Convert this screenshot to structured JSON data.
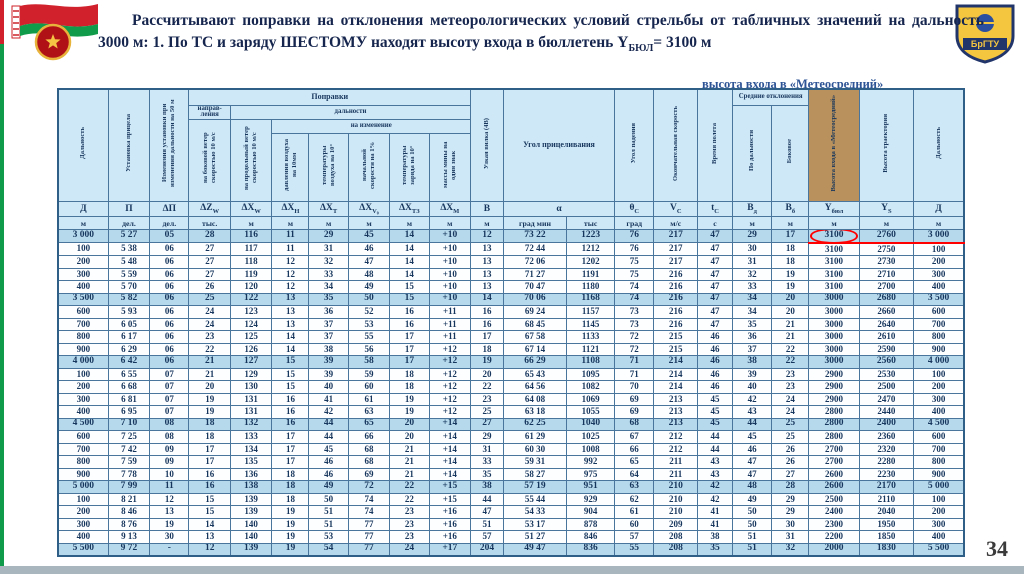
{
  "slide": {
    "title": "Рассчитывают поправки на отклонения метеорологических условий стрельбы от табличных значений на дальность 3000 м: 1. По ТС и заряду ШЕСТОМУ находят высоту входа в бюллетень",
    "formula_base": "Y",
    "formula_sub": "БЮЛ",
    "formula_rest": "= 3100 м",
    "partial_caption": "высота входа в «Метеосредний»",
    "page_number": "34",
    "crest_text": "БрГТУ"
  },
  "colors": {
    "header_blue": "#CFE8F7",
    "milestone_blue": "#B7D9EC",
    "highlight_tan": "#B8915C",
    "accent_red": "#FF0000",
    "title_navy": "#15254D",
    "table_border": "#49759C",
    "flag_red": "#D0212C",
    "flag_green": "#109B4A"
  },
  "table": {
    "group_headers": {
      "range": "Дальность",
      "sight": "Установка прицела",
      "delta": "Изменения установки при изменении дальности на 50 м",
      "corrections": "Поправки",
      "direction": "направ-ления",
      "of_range": "дальности",
      "on_change": "на изменение",
      "side_wind": "на боковой ветер скоростью 10 м/с",
      "head_wind": "на продольный ветер скоростью 10 м/с",
      "pressure": "давления воздуха на 10мм",
      "air_temp": "температуры воздуха на 10°",
      "muzzle_velocity": "начальной скорости на 1%",
      "charge_temp": "температуры заряда на 10°",
      "mine_mass": "массы мины на один знак",
      "fork": "Узкая вилка (4В)",
      "aim_angle": "Угол прицеливания",
      "fall_angle": "Угол падения",
      "final_speed": "Окончательная скорость",
      "flight_time": "Время полета",
      "mean_dev": "Средние отклонения",
      "dev_range": "По дальности",
      "dev_side": "Боковое",
      "entry_height": "Высота входа в «Метеосредний»",
      "traj_height": "Высота траектории",
      "range2": "Дальность"
    },
    "symbols": [
      "Д",
      "П",
      "ΔП",
      "ΔZ_W",
      "ΔX_W",
      "ΔX_Н",
      "ΔX_Т",
      "ΔX_V₀",
      "ΔX_ТЗ",
      "ΔX_М",
      "В",
      "α",
      "θ_С",
      "V_С",
      "t_С",
      "В_д",
      "В_б",
      "Y_бюл",
      "Y_S",
      "Д"
    ],
    "units": [
      "м",
      "дел.",
      "дел.",
      "тыс.",
      "м",
      "м",
      "м",
      "м",
      "м",
      "м",
      "м",
      "град мин",
      "тыс",
      "град",
      "м/с",
      "с",
      "м",
      "м",
      "м",
      "м",
      "м"
    ],
    "rows": [
      [
        "3 000",
        "5 27",
        "05",
        "28",
        "116",
        "11",
        "29",
        "45",
        "14",
        "+10",
        "12",
        "73 22",
        "1223",
        "76",
        "217",
        "47",
        "29",
        "17",
        "3100",
        "2760",
        "3 000"
      ],
      [
        "100",
        "5 38",
        "06",
        "27",
        "117",
        "11",
        "31",
        "46",
        "14",
        "+10",
        "13",
        "72 44",
        "1212",
        "76",
        "217",
        "47",
        "30",
        "18",
        "3100",
        "2750",
        "100"
      ],
      [
        "200",
        "5 48",
        "06",
        "27",
        "118",
        "12",
        "32",
        "47",
        "14",
        "+10",
        "13",
        "72 06",
        "1202",
        "75",
        "217",
        "47",
        "31",
        "18",
        "3100",
        "2730",
        "200"
      ],
      [
        "300",
        "5 59",
        "06",
        "27",
        "119",
        "12",
        "33",
        "48",
        "14",
        "+10",
        "13",
        "71 27",
        "1191",
        "75",
        "216",
        "47",
        "32",
        "19",
        "3100",
        "2710",
        "300"
      ],
      [
        "400",
        "5 70",
        "06",
        "26",
        "120",
        "12",
        "34",
        "49",
        "15",
        "+10",
        "13",
        "70 47",
        "1180",
        "74",
        "216",
        "47",
        "33",
        "19",
        "3100",
        "2700",
        "400"
      ],
      [
        "3 500",
        "5 82",
        "06",
        "25",
        "122",
        "13",
        "35",
        "50",
        "15",
        "+10",
        "14",
        "70 06",
        "1168",
        "74",
        "216",
        "47",
        "34",
        "20",
        "3000",
        "2680",
        "3 500"
      ],
      [
        "600",
        "5 93",
        "06",
        "24",
        "123",
        "13",
        "36",
        "52",
        "16",
        "+11",
        "16",
        "69 24",
        "1157",
        "73",
        "216",
        "47",
        "34",
        "20",
        "3000",
        "2660",
        "600"
      ],
      [
        "700",
        "6 05",
        "06",
        "24",
        "124",
        "13",
        "37",
        "53",
        "16",
        "+11",
        "16",
        "68 45",
        "1145",
        "73",
        "216",
        "47",
        "35",
        "21",
        "3000",
        "2640",
        "700"
      ],
      [
        "800",
        "6 17",
        "06",
        "23",
        "125",
        "14",
        "37",
        "55",
        "17",
        "+11",
        "17",
        "67 58",
        "1133",
        "72",
        "215",
        "46",
        "36",
        "21",
        "3000",
        "2610",
        "800"
      ],
      [
        "900",
        "6 29",
        "06",
        "22",
        "126",
        "14",
        "38",
        "56",
        "17",
        "+12",
        "18",
        "67 14",
        "1121",
        "72",
        "215",
        "46",
        "37",
        "22",
        "3000",
        "2590",
        "900"
      ],
      [
        "4 000",
        "6 42",
        "06",
        "21",
        "127",
        "15",
        "39",
        "58",
        "17",
        "+12",
        "19",
        "66 29",
        "1108",
        "71",
        "214",
        "46",
        "38",
        "22",
        "3000",
        "2560",
        "4 000"
      ],
      [
        "100",
        "6 55",
        "07",
        "21",
        "129",
        "15",
        "39",
        "59",
        "18",
        "+12",
        "20",
        "65 43",
        "1095",
        "71",
        "214",
        "46",
        "39",
        "23",
        "2900",
        "2530",
        "100"
      ],
      [
        "200",
        "6 68",
        "07",
        "20",
        "130",
        "15",
        "40",
        "60",
        "18",
        "+12",
        "22",
        "64 56",
        "1082",
        "70",
        "214",
        "46",
        "40",
        "23",
        "2900",
        "2500",
        "200"
      ],
      [
        "300",
        "6 81",
        "07",
        "19",
        "131",
        "16",
        "41",
        "61",
        "19",
        "+12",
        "23",
        "64 08",
        "1069",
        "69",
        "213",
        "45",
        "42",
        "24",
        "2900",
        "2470",
        "300"
      ],
      [
        "400",
        "6 95",
        "07",
        "19",
        "131",
        "16",
        "42",
        "63",
        "19",
        "+12",
        "25",
        "63 18",
        "1055",
        "69",
        "213",
        "45",
        "43",
        "24",
        "2800",
        "2440",
        "400"
      ],
      [
        "4 500",
        "7 10",
        "08",
        "18",
        "132",
        "16",
        "44",
        "65",
        "20",
        "+14",
        "27",
        "62 25",
        "1040",
        "68",
        "213",
        "45",
        "44",
        "25",
        "2800",
        "2400",
        "4 500"
      ],
      [
        "600",
        "7 25",
        "08",
        "18",
        "133",
        "17",
        "44",
        "66",
        "20",
        "+14",
        "29",
        "61 29",
        "1025",
        "67",
        "212",
        "44",
        "45",
        "25",
        "2800",
        "2360",
        "600"
      ],
      [
        "700",
        "7 42",
        "09",
        "17",
        "134",
        "17",
        "45",
        "68",
        "21",
        "+14",
        "31",
        "60 30",
        "1008",
        "66",
        "212",
        "44",
        "46",
        "26",
        "2700",
        "2320",
        "700"
      ],
      [
        "800",
        "7 59",
        "09",
        "17",
        "135",
        "17",
        "46",
        "68",
        "21",
        "+14",
        "33",
        "59 31",
        "992",
        "65",
        "211",
        "43",
        "47",
        "26",
        "2700",
        "2280",
        "800"
      ],
      [
        "900",
        "7 78",
        "10",
        "16",
        "136",
        "18",
        "46",
        "69",
        "21",
        "+14",
        "35",
        "58 27",
        "975",
        "64",
        "211",
        "43",
        "47",
        "27",
        "2600",
        "2230",
        "900"
      ],
      [
        "5 000",
        "7 99",
        "11",
        "16",
        "138",
        "18",
        "49",
        "72",
        "22",
        "+15",
        "38",
        "57 19",
        "951",
        "63",
        "210",
        "42",
        "48",
        "28",
        "2600",
        "2170",
        "5 000"
      ],
      [
        "100",
        "8 21",
        "12",
        "15",
        "139",
        "18",
        "50",
        "74",
        "22",
        "+15",
        "44",
        "55 44",
        "929",
        "62",
        "210",
        "42",
        "49",
        "29",
        "2500",
        "2110",
        "100"
      ],
      [
        "200",
        "8 46",
        "13",
        "15",
        "139",
        "19",
        "51",
        "74",
        "23",
        "+16",
        "47",
        "54 33",
        "904",
        "61",
        "210",
        "41",
        "50",
        "29",
        "2400",
        "2040",
        "200"
      ],
      [
        "300",
        "8 76",
        "19",
        "14",
        "140",
        "19",
        "51",
        "77",
        "23",
        "+16",
        "51",
        "53 17",
        "878",
        "60",
        "209",
        "41",
        "50",
        "30",
        "2300",
        "1950",
        "300"
      ],
      [
        "400",
        "9 13",
        "30",
        "13",
        "140",
        "19",
        "53",
        "77",
        "23",
        "+16",
        "57",
        "51 27",
        "846",
        "57",
        "208",
        "38",
        "51",
        "31",
        "2200",
        "1850",
        "400"
      ],
      [
        "5 500",
        "9 72",
        "-",
        "12",
        "139",
        "19",
        "54",
        "77",
        "24",
        "+17",
        "204",
        "49 47",
        "836",
        "55",
        "208",
        "35",
        "51",
        "32",
        "2000",
        "1830",
        "5 500"
      ]
    ],
    "milestone_rows": [
      0,
      5,
      10,
      15,
      20,
      25
    ],
    "highlight": {
      "row": 0,
      "circled_col": 18,
      "underline_cols": [
        18,
        19,
        20
      ]
    }
  }
}
